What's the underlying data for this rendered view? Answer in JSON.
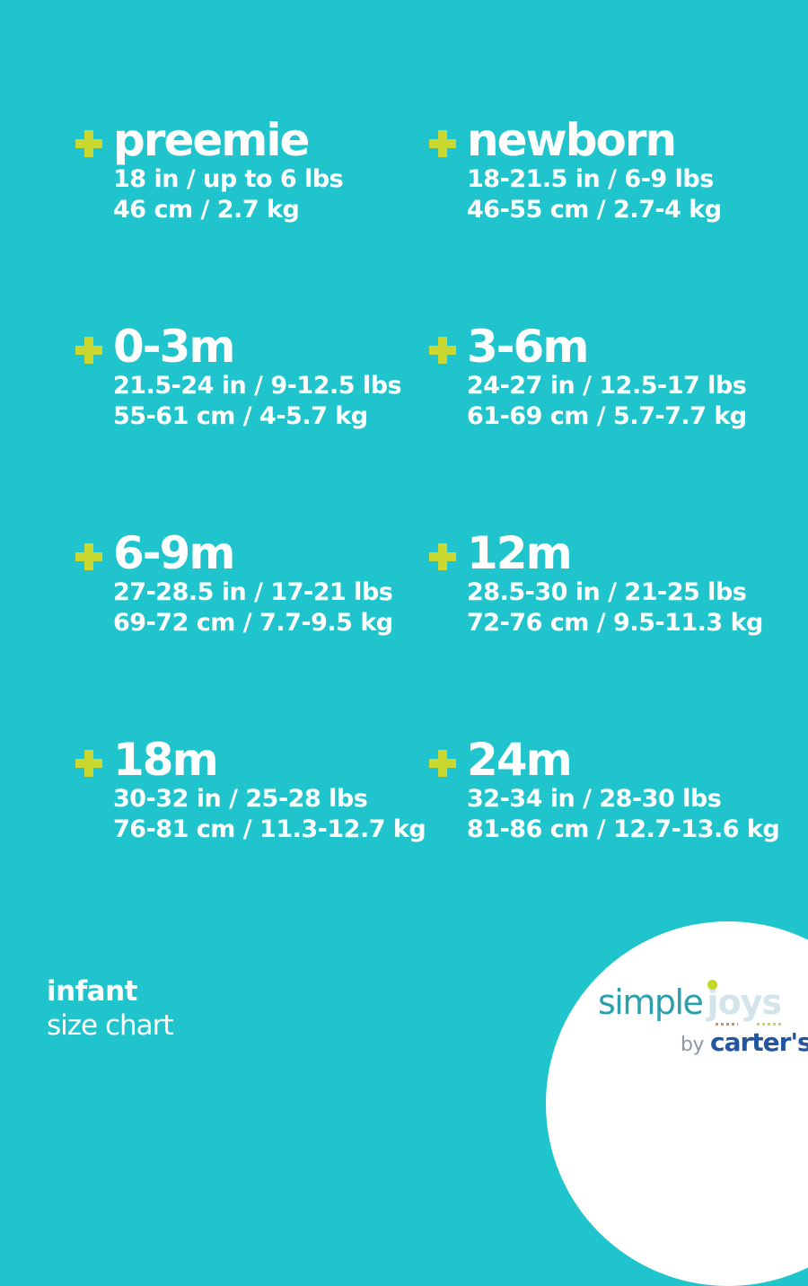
{
  "theme": {
    "bg": "#1fc4cc",
    "text": "#ffffff",
    "plus": "#c9d931",
    "circle": "#ffffff",
    "logo_simple": "#2b9fae",
    "logo_joys": "#d3e4ea",
    "logo_dot": "#c3d629",
    "logo_dots_left": "#d98f4d",
    "logo_dots_right": "#c9d63c",
    "logo_by": "#8d9aa4",
    "logo_carters": "#2456a0"
  },
  "sizes": [
    {
      "name": "preemie",
      "imperial": "18 in / up to 6 lbs",
      "metric": "46 cm / 2.7 kg"
    },
    {
      "name": "newborn",
      "imperial": "18-21.5 in / 6-9 lbs",
      "metric": "46-55 cm / 2.7-4 kg"
    },
    {
      "name": "0-3m",
      "imperial": "21.5-24 in / 9-12.5 lbs",
      "metric": "55-61 cm / 4-5.7 kg"
    },
    {
      "name": "3-6m",
      "imperial": "24-27 in / 12.5-17 lbs",
      "metric": "61-69 cm / 5.7-7.7 kg"
    },
    {
      "name": "6-9m",
      "imperial": "27-28.5 in / 17-21 lbs",
      "metric": "69-72 cm / 7.7-9.5 kg"
    },
    {
      "name": "12m",
      "imperial": "28.5-30 in / 21-25 lbs",
      "metric": "72-76 cm / 9.5-11.3 kg"
    },
    {
      "name": "18m",
      "imperial": "30-32 in / 25-28 lbs",
      "metric": "76-81 cm / 11.3-12.7 kg"
    },
    {
      "name": "24m",
      "imperial": "32-34 in / 28-30 lbs",
      "metric": "81-86 cm / 12.7-13.6 kg"
    }
  ],
  "footer": {
    "line1": "infant",
    "line2": "size chart"
  },
  "logo": {
    "word1": "simple",
    "word2": "joys",
    "by": "by",
    "brand": "carter's",
    "tm": "™"
  }
}
